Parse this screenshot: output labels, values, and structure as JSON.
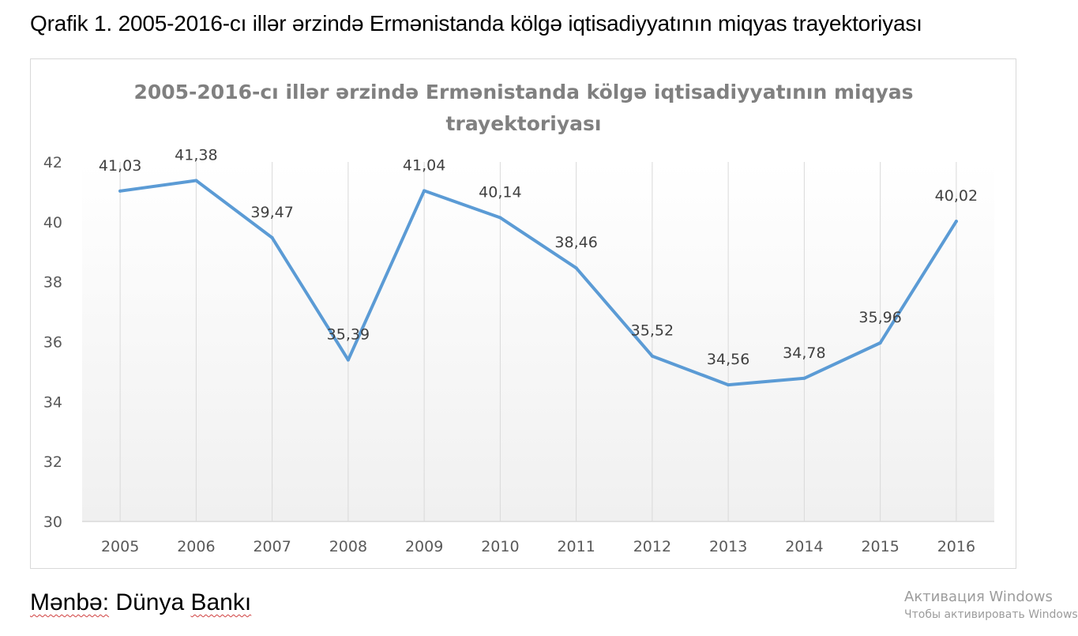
{
  "caption": "Qrafik 1. 2005-2016-cı illər ərzində Ermənistanda kölgə iqtisadiyyatının miqyas trayektoriyası",
  "source": {
    "label": "Mənbə:",
    "name_word1": "Dünya",
    "name_word2": "Bankı"
  },
  "watermark": {
    "line1": "Активация Windows",
    "line2": "Чтобы активировать Windows, г"
  },
  "colors": {
    "line": "#5b9bd5",
    "title": "#808080",
    "axis_text": "#595959",
    "label_text": "#404040",
    "gridline": "#d9d9d9"
  },
  "chart_data": {
    "type": "line",
    "title_line1": "2005-2016-cı illər ərzində Ermənistanda kölgə iqtisadiyyatının miqyas",
    "title_line2": "trayektoriyası",
    "categories": [
      "2005",
      "2006",
      "2007",
      "2008",
      "2009",
      "2010",
      "2011",
      "2012",
      "2013",
      "2014",
      "2015",
      "2016"
    ],
    "values": [
      41.03,
      41.38,
      39.47,
      35.39,
      41.04,
      40.14,
      38.46,
      35.52,
      34.56,
      34.78,
      35.96,
      40.02
    ],
    "data_labels": [
      "41,03",
      "41,38",
      "39,47",
      "35,39",
      "41,04",
      "40,14",
      "38,46",
      "35,52",
      "34,56",
      "34,78",
      "35,96",
      "40,02"
    ],
    "y_ticks": [
      "30",
      "32",
      "34",
      "36",
      "38",
      "40",
      "42"
    ],
    "ylim": [
      30,
      42
    ],
    "xlabel": "",
    "ylabel": "",
    "grid": "vertical",
    "legend": "none"
  }
}
